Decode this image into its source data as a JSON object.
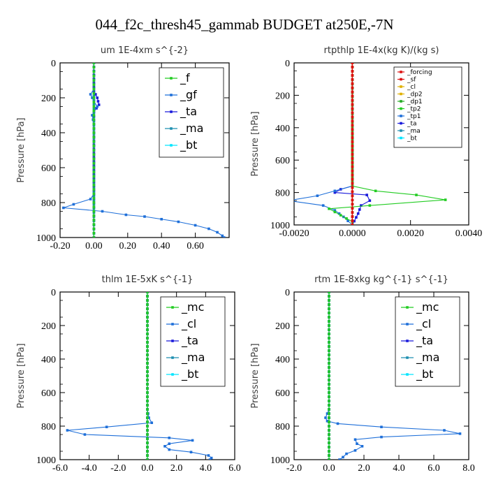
{
  "title": "044_f2c_thresh45_gammab  BUDGET at250E,-7N",
  "colors": {
    "f": "#22cc22",
    "gf": "#1e6fd9",
    "ta": "#1a1adb",
    "ma": "#1f8fb0",
    "bt": "#00e5ff",
    "forcing": "#dd1111",
    "sf": "#dd1111",
    "cl": "#e0b000",
    "dp2": "#e0b000",
    "dp1": "#22aa22",
    "tp2": "#22cc22",
    "tp1": "#1e6fd9",
    "mc": "#22cc22"
  },
  "chart_data": [
    {
      "type": "line",
      "title": "um  1E-4xm s^{-2}",
      "ylabel": "Pressure [hPa]",
      "xlim": [
        -0.2,
        0.8
      ],
      "ylim": [
        1000,
        0
      ],
      "xticks": [
        "-0.20",
        "0.00",
        "0.20",
        "0.40",
        "0.60"
      ],
      "xtick_values": [
        -0.2,
        0.0,
        0.2,
        0.4,
        0.6
      ],
      "yticks": [
        "0",
        "200",
        "400",
        "600",
        "800",
        "1000"
      ],
      "legend": {
        "position": "top-right",
        "entries": [
          "_f",
          "_gf",
          "_ta",
          "_ma",
          "_bt"
        ]
      },
      "series": [
        {
          "name": "_f",
          "color": "f",
          "points": [
            [
              0,
              0
            ],
            [
              0,
              100
            ],
            [
              0,
              200
            ],
            [
              0,
              300
            ],
            [
              0,
              400
            ],
            [
              0,
              500
            ],
            [
              0,
              600
            ],
            [
              0,
              700
            ],
            [
              0,
              800
            ],
            [
              0,
              900
            ],
            [
              0,
              1000
            ]
          ]
        },
        {
          "name": "_gf",
          "color": "gf",
          "points": [
            [
              0,
              0
            ],
            [
              0,
              150
            ],
            [
              -0.02,
              180
            ],
            [
              -0.01,
              200
            ],
            [
              0,
              220
            ],
            [
              0.02,
              250
            ],
            [
              0,
              280
            ],
            [
              -0.01,
              300
            ],
            [
              0,
              350
            ],
            [
              0,
              450
            ],
            [
              0,
              550
            ],
            [
              0,
              650
            ],
            [
              0,
              750
            ],
            [
              -0.02,
              780
            ],
            [
              -0.12,
              810
            ],
            [
              -0.18,
              830
            ],
            [
              0.05,
              850
            ],
            [
              0.19,
              870
            ],
            [
              0.3,
              880
            ],
            [
              0.4,
              895
            ],
            [
              0.5,
              910
            ],
            [
              0.6,
              930
            ],
            [
              0.68,
              950
            ],
            [
              0.73,
              970
            ],
            [
              0.76,
              990
            ],
            [
              0.77,
              1000
            ]
          ]
        },
        {
          "name": "_ta",
          "color": "ta",
          "points": [
            [
              0,
              0
            ],
            [
              0,
              160
            ],
            [
              0.02,
              200
            ],
            [
              0.03,
              240
            ],
            [
              0,
              280
            ],
            [
              0,
              350
            ],
            [
              0,
              800
            ],
            [
              0,
              1000
            ]
          ]
        },
        {
          "name": "_ma",
          "color": "ma",
          "points": [
            [
              0,
              0
            ],
            [
              0,
              1000
            ]
          ]
        },
        {
          "name": "_bt",
          "color": "bt",
          "points": [
            [
              0,
              0
            ],
            [
              0,
              1000
            ]
          ]
        }
      ]
    },
    {
      "type": "line",
      "title": "rtpthlp  1E-4x(kg K)/(kg s)",
      "ylabel": "Pressure [hPa]",
      "xlim": [
        -0.002,
        0.004
      ],
      "ylim": [
        1000,
        0
      ],
      "xticks": [
        "-0.0020",
        "0.0000",
        "0.0020",
        "0.0040"
      ],
      "xtick_values": [
        -0.002,
        0.0,
        0.002,
        0.004
      ],
      "yticks": [
        "0",
        "200",
        "400",
        "600",
        "800",
        "1000"
      ],
      "legend": {
        "position": "top-right",
        "entries": [
          "_forcing",
          "_sf",
          "_cl",
          "_dp2",
          "_dp1",
          "_tp2",
          "_tp1",
          "_ta",
          "_ma",
          "_bt"
        ]
      },
      "series": [
        {
          "name": "_forcing",
          "color": "forcing",
          "points": [
            [
              0,
              0
            ],
            [
              0,
              1000
            ]
          ]
        },
        {
          "name": "_sf",
          "color": "sf",
          "points": [
            [
              0,
              0
            ],
            [
              0,
              1000
            ]
          ]
        },
        {
          "name": "_cl",
          "color": "cl",
          "points": [
            [
              0,
              0
            ],
            [
              0,
              1000
            ]
          ]
        },
        {
          "name": "_dp2",
          "color": "dp2",
          "points": [
            [
              0,
              0
            ],
            [
              0,
              1000
            ]
          ]
        },
        {
          "name": "_dp1",
          "color": "dp1",
          "points": [
            [
              0,
              0
            ],
            [
              0,
              1000
            ]
          ]
        },
        {
          "name": "_tp2",
          "color": "tp2",
          "points": [
            [
              0,
              0
            ],
            [
              0,
              760
            ],
            [
              0.0008,
              790
            ],
            [
              0.0022,
              815
            ],
            [
              0.0032,
              845
            ],
            [
              0.0006,
              880
            ],
            [
              -0.0008,
              900
            ],
            [
              -0.0004,
              940
            ],
            [
              0,
              980
            ],
            [
              0,
              1000
            ]
          ]
        },
        {
          "name": "_tp1",
          "color": "tp1",
          "points": [
            [
              0,
              0
            ],
            [
              0,
              760
            ],
            [
              -0.0006,
              790
            ],
            [
              -0.0012,
              820
            ],
            [
              -0.0022,
              850
            ],
            [
              -0.001,
              880
            ],
            [
              -0.0006,
              910
            ],
            [
              -0.0003,
              950
            ],
            [
              0,
              1000
            ]
          ]
        },
        {
          "name": "_ta",
          "color": "ta",
          "points": [
            [
              0,
              0
            ],
            [
              0,
              760
            ],
            [
              -0.0004,
              780
            ],
            [
              -0.0006,
              800
            ],
            [
              0.0005,
              815
            ],
            [
              0.0006,
              850
            ],
            [
              0.0003,
              880
            ],
            [
              0.0002,
              930
            ],
            [
              0,
              1000
            ]
          ]
        },
        {
          "name": "_ma",
          "color": "ma",
          "points": [
            [
              0,
              0
            ],
            [
              0,
              1000
            ]
          ]
        },
        {
          "name": "_bt",
          "color": "bt",
          "points": [
            [
              0,
              0
            ],
            [
              0,
              1000
            ]
          ]
        }
      ]
    },
    {
      "type": "line",
      "title": "thlm  1E-5xK s^{-1}",
      "ylabel": "Pressure [hPa]",
      "xlim": [
        -6.0,
        6.0
      ],
      "ylim": [
        1000,
        0
      ],
      "xticks": [
        "-6.0",
        "-4.0",
        "-2.0",
        "0.0",
        "2.0",
        "4.0",
        "6.0"
      ],
      "xtick_values": [
        -6,
        -4,
        -2,
        0,
        2,
        4,
        6
      ],
      "yticks": [
        "0",
        "200",
        "400",
        "600",
        "800",
        "1000"
      ],
      "legend": {
        "position": "top-right",
        "entries": [
          "_mc",
          "_cl",
          "_ta",
          "_ma",
          "_bt"
        ]
      },
      "series": [
        {
          "name": "_mc",
          "color": "mc",
          "points": [
            [
              0,
              0
            ],
            [
              0,
              1000
            ]
          ]
        },
        {
          "name": "_cl",
          "color": "gf",
          "points": [
            [
              0,
              0
            ],
            [
              0,
              700
            ],
            [
              0.1,
              750
            ],
            [
              0.3,
              780
            ],
            [
              -2.8,
              805
            ],
            [
              -5.5,
              825
            ],
            [
              -4.3,
              850
            ],
            [
              1.5,
              870
            ],
            [
              3.1,
              885
            ],
            [
              1.5,
              905
            ],
            [
              1.2,
              920
            ],
            [
              1.5,
              940
            ],
            [
              3.0,
              955
            ],
            [
              4.2,
              975
            ],
            [
              4.4,
              990
            ],
            [
              4.3,
              1000
            ]
          ]
        },
        {
          "name": "_ta",
          "color": "ta",
          "points": [
            [
              0,
              0
            ],
            [
              0,
              1000
            ]
          ]
        },
        {
          "name": "_ma",
          "color": "ma",
          "points": [
            [
              0,
              0
            ],
            [
              0,
              1000
            ]
          ]
        },
        {
          "name": "_bt",
          "color": "bt",
          "points": [
            [
              0,
              0
            ],
            [
              0,
              1000
            ]
          ]
        }
      ]
    },
    {
      "type": "line",
      "title": "rtm  1E-8xkg kg^{-1} s^{-1}",
      "ylabel": "Pressure [hPa]",
      "xlim": [
        -2.0,
        8.0
      ],
      "ylim": [
        1000,
        0
      ],
      "xticks": [
        "-2.0",
        "0.0",
        "2.0",
        "4.0",
        "6.0",
        "8.0"
      ],
      "xtick_values": [
        -2,
        0,
        2,
        4,
        6,
        8
      ],
      "yticks": [
        "0",
        "200",
        "400",
        "600",
        "800",
        "1000"
      ],
      "legend": {
        "position": "top-right",
        "entries": [
          "_mc",
          "_cl",
          "_ta",
          "_ma",
          "_bt"
        ]
      },
      "series": [
        {
          "name": "_mc",
          "color": "mc",
          "points": [
            [
              0,
              0
            ],
            [
              0,
              1000
            ]
          ]
        },
        {
          "name": "_cl",
          "color": "gf",
          "points": [
            [
              0,
              0
            ],
            [
              0,
              700
            ],
            [
              -0.2,
              750
            ],
            [
              -0.1,
              770
            ],
            [
              0.5,
              785
            ],
            [
              3.0,
              805
            ],
            [
              6.6,
              825
            ],
            [
              7.5,
              845
            ],
            [
              3.0,
              865
            ],
            [
              1.5,
              880
            ],
            [
              1.6,
              905
            ],
            [
              1.9,
              920
            ],
            [
              1.5,
              945
            ],
            [
              1.0,
              965
            ],
            [
              0.8,
              985
            ],
            [
              0.6,
              1000
            ]
          ]
        },
        {
          "name": "_ta",
          "color": "ta",
          "points": [
            [
              0,
              0
            ],
            [
              0,
              1000
            ]
          ]
        },
        {
          "name": "_ma",
          "color": "ma",
          "points": [
            [
              0,
              0
            ],
            [
              0,
              1000
            ]
          ]
        },
        {
          "name": "_bt",
          "color": "bt",
          "points": [
            [
              0,
              0
            ],
            [
              0,
              1000
            ]
          ]
        }
      ]
    }
  ]
}
